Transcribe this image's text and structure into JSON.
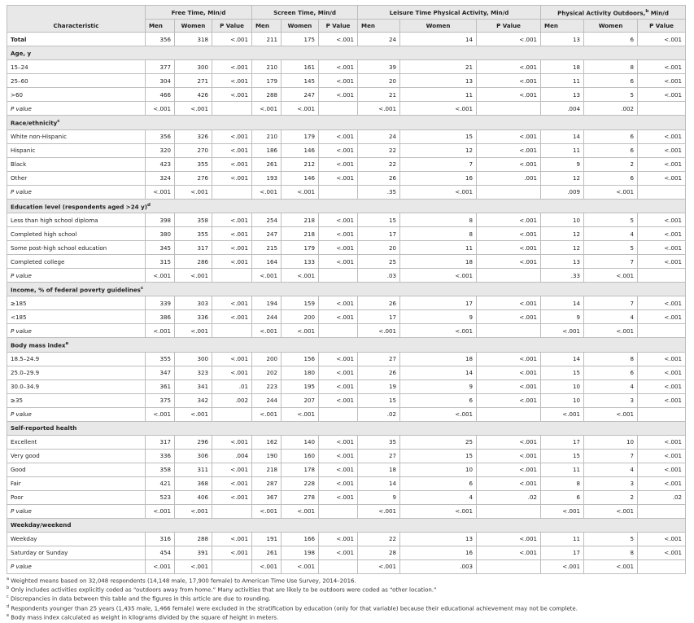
{
  "headers": {
    "characteristic": "Characteristic",
    "groups": [
      {
        "label": "Free Time, Min/d",
        "sup": ""
      },
      {
        "label": "Screen Time, Min/d",
        "sup": ""
      },
      {
        "label": "Leisure Time Physical Activity, Min/d",
        "sup": ""
      },
      {
        "label": "Physical Activity Outdoors,",
        "sup": "b",
        "suffix": " Min/d"
      }
    ],
    "sub": [
      "Men",
      "Women",
      "P Value"
    ]
  },
  "rows": [
    {
      "kind": "total",
      "label": "Total",
      "v": [
        "356",
        "318",
        "<.001",
        "211",
        "175",
        "<.001",
        "24",
        "14",
        "<.001",
        "13",
        "6",
        "<.001"
      ]
    },
    {
      "kind": "section",
      "label": "Age, y",
      "sup": ""
    },
    {
      "kind": "data",
      "label": "15–24",
      "v": [
        "377",
        "300",
        "<.001",
        "210",
        "161",
        "<.001",
        "39",
        "21",
        "<.001",
        "18",
        "8",
        "<.001"
      ]
    },
    {
      "kind": "data",
      "label": "25–60",
      "v": [
        "304",
        "271",
        "<.001",
        "179",
        "145",
        "<.001",
        "20",
        "13",
        "<.001",
        "11",
        "6",
        "<.001"
      ]
    },
    {
      "kind": "data",
      "label": ">60",
      "v": [
        "466",
        "426",
        "<.001",
        "288",
        "247",
        "<.001",
        "21",
        "11",
        "<.001",
        "13",
        "5",
        "<.001"
      ]
    },
    {
      "kind": "pvalue",
      "label": "P value",
      "v": [
        "<.001",
        "<.001",
        "",
        "<.001",
        "<.001",
        "",
        "<.001",
        "<.001",
        "",
        ".004",
        ".002",
        ""
      ]
    },
    {
      "kind": "section",
      "label": "Race/ethnicity",
      "sup": "c"
    },
    {
      "kind": "data",
      "label": "White non-Hispanic",
      "v": [
        "356",
        "326",
        "<.001",
        "210",
        "179",
        "<.001",
        "24",
        "15",
        "<.001",
        "14",
        "6",
        "<.001"
      ]
    },
    {
      "kind": "data",
      "label": "Hispanic",
      "v": [
        "320",
        "270",
        "<.001",
        "186",
        "146",
        "<.001",
        "22",
        "12",
        "<.001",
        "11",
        "6",
        "<.001"
      ]
    },
    {
      "kind": "data",
      "label": "Black",
      "v": [
        "423",
        "355",
        "<.001",
        "261",
        "212",
        "<.001",
        "22",
        "7",
        "<.001",
        "9",
        "2",
        "<.001"
      ]
    },
    {
      "kind": "data",
      "label": "Other",
      "v": [
        "324",
        "276",
        "<.001",
        "193",
        "146",
        "<.001",
        "26",
        "16",
        ".001",
        "12",
        "6",
        "<.001"
      ]
    },
    {
      "kind": "pvalue",
      "label": "P value",
      "v": [
        "<.001",
        "<.001",
        "",
        "<.001",
        "<.001",
        "",
        ".35",
        "<.001",
        "",
        ".009",
        "<.001",
        ""
      ]
    },
    {
      "kind": "section",
      "label": "Education level (respondents aged >24 y)",
      "sup": "d"
    },
    {
      "kind": "data",
      "label": "Less than high school diploma",
      "v": [
        "398",
        "358",
        "<.001",
        "254",
        "218",
        "<.001",
        "15",
        "8",
        "<.001",
        "10",
        "5",
        "<.001"
      ]
    },
    {
      "kind": "data",
      "label": "Completed high school",
      "v": [
        "380",
        "355",
        "<.001",
        "247",
        "218",
        "<.001",
        "17",
        "8",
        "<.001",
        "12",
        "4",
        "<.001"
      ]
    },
    {
      "kind": "data",
      "label": "Some post-high school education",
      "v": [
        "345",
        "317",
        "<.001",
        "215",
        "179",
        "<.001",
        "20",
        "11",
        "<.001",
        "12",
        "5",
        "<.001"
      ]
    },
    {
      "kind": "data",
      "label": "Completed college",
      "v": [
        "315",
        "286",
        "<.001",
        "164",
        "133",
        "<.001",
        "25",
        "18",
        "<.001",
        "13",
        "7",
        "<.001"
      ]
    },
    {
      "kind": "pvalue",
      "label": "P value",
      "v": [
        "<.001",
        "<.001",
        "",
        "<.001",
        "<.001",
        "",
        ".03",
        "<.001",
        "",
        ".33",
        "<.001",
        ""
      ]
    },
    {
      "kind": "section",
      "label": "Income, % of federal poverty guidelines",
      "sup": "c"
    },
    {
      "kind": "data",
      "label": "≥185",
      "v": [
        "339",
        "303",
        "<.001",
        "194",
        "159",
        "<.001",
        "26",
        "17",
        "<.001",
        "14",
        "7",
        "<.001"
      ]
    },
    {
      "kind": "data",
      "label": "<185",
      "v": [
        "386",
        "336",
        "<.001",
        "244",
        "200",
        "<.001",
        "17",
        "9",
        "<.001",
        "9",
        "4",
        "<.001"
      ]
    },
    {
      "kind": "pvalue",
      "label": "P value",
      "v": [
        "<.001",
        "<.001",
        "",
        "<.001",
        "<.001",
        "",
        "<.001",
        "<.001",
        "",
        "<.001",
        "<.001",
        ""
      ]
    },
    {
      "kind": "section",
      "label": "Body mass index",
      "sup": "e"
    },
    {
      "kind": "data",
      "label": "18.5–24.9",
      "v": [
        "355",
        "300",
        "<.001",
        "200",
        "156",
        "<.001",
        "27",
        "18",
        "<.001",
        "14",
        "8",
        "<.001"
      ]
    },
    {
      "kind": "data",
      "label": "25.0–29.9",
      "v": [
        "347",
        "323",
        "<.001",
        "202",
        "180",
        "<.001",
        "26",
        "14",
        "<.001",
        "15",
        "6",
        "<.001"
      ]
    },
    {
      "kind": "data",
      "label": "30.0–34.9",
      "v": [
        "361",
        "341",
        ".01",
        "223",
        "195",
        "<.001",
        "19",
        "9",
        "<.001",
        "10",
        "4",
        "<.001"
      ]
    },
    {
      "kind": "data",
      "label": "≥35",
      "v": [
        "375",
        "342",
        ".002",
        "244",
        "207",
        "<.001",
        "15",
        "6",
        "<.001",
        "10",
        "3",
        "<.001"
      ]
    },
    {
      "kind": "pvalue",
      "label": "P value",
      "v": [
        "<.001",
        "<.001",
        "",
        "<.001",
        "<.001",
        "",
        ".02",
        "<.001",
        "",
        "<.001",
        "<.001",
        ""
      ]
    },
    {
      "kind": "section",
      "label": "Self-reported health",
      "sup": ""
    },
    {
      "kind": "data",
      "label": "Excellent",
      "v": [
        "317",
        "296",
        "<.001",
        "162",
        "140",
        "<.001",
        "35",
        "25",
        "<.001",
        "17",
        "10",
        "<.001"
      ]
    },
    {
      "kind": "data",
      "label": "Very good",
      "v": [
        "336",
        "306",
        ".004",
        "190",
        "160",
        "<.001",
        "27",
        "15",
        "<.001",
        "15",
        "7",
        "<.001"
      ]
    },
    {
      "kind": "data",
      "label": "Good",
      "v": [
        "358",
        "311",
        "<.001",
        "218",
        "178",
        "<.001",
        "18",
        "10",
        "<.001",
        "11",
        "4",
        "<.001"
      ]
    },
    {
      "kind": "data",
      "label": "Fair",
      "v": [
        "421",
        "368",
        "<.001",
        "287",
        "228",
        "<.001",
        "14",
        "6",
        "<.001",
        "8",
        "3",
        "<.001"
      ]
    },
    {
      "kind": "data",
      "label": "Poor",
      "v": [
        "523",
        "406",
        "<.001",
        "367",
        "278",
        "<.001",
        "9",
        "4",
        ".02",
        "6",
        "2",
        ".02"
      ]
    },
    {
      "kind": "pvalue",
      "label": "P value",
      "v": [
        "<.001",
        "<.001",
        "",
        "<.001",
        "<.001",
        "",
        "<.001",
        "<.001",
        "",
        "<.001",
        "<.001",
        ""
      ]
    },
    {
      "kind": "section",
      "label": "Weekday/weekend",
      "sup": ""
    },
    {
      "kind": "data",
      "label": "Weekday",
      "v": [
        "316",
        "288",
        "<.001",
        "191",
        "166",
        "<.001",
        "22",
        "13",
        "<.001",
        "11",
        "5",
        "<.001"
      ]
    },
    {
      "kind": "data",
      "label": "Saturday or Sunday",
      "v": [
        "454",
        "391",
        "<.001",
        "261",
        "198",
        "<.001",
        "28",
        "16",
        "<.001",
        "17",
        "8",
        "<.001"
      ]
    },
    {
      "kind": "pvalue",
      "label": "P value",
      "v": [
        "<.001",
        "<.001",
        "",
        "<.001",
        "<.001",
        "",
        "<.001",
        ".003",
        "",
        "<.001",
        "<.001",
        ""
      ]
    }
  ],
  "footnotes": [
    {
      "mark": "a",
      "text": " Weighted means based on 32,048 respondents (14,148 male, 17,900 female) to American Time Use Survey, 2014–2016."
    },
    {
      "mark": "b",
      "text": " Only includes activities explicitly coded as “outdoors away from home.” Many activities that are likely to be outdoors were coded as “other location.”"
    },
    {
      "mark": "c",
      "text": " Discrepancies in data between this table and the figures in this article are due to rounding."
    },
    {
      "mark": "d",
      "text": " Respondents younger than 25 years (1,435 male, 1,466 female) were excluded in the stratification by education (only for that variable) because their educational achievement may not be complete."
    },
    {
      "mark": "e",
      "text": " Body mass index calculated as weight in kilograms divided by the square of height in meters."
    }
  ]
}
